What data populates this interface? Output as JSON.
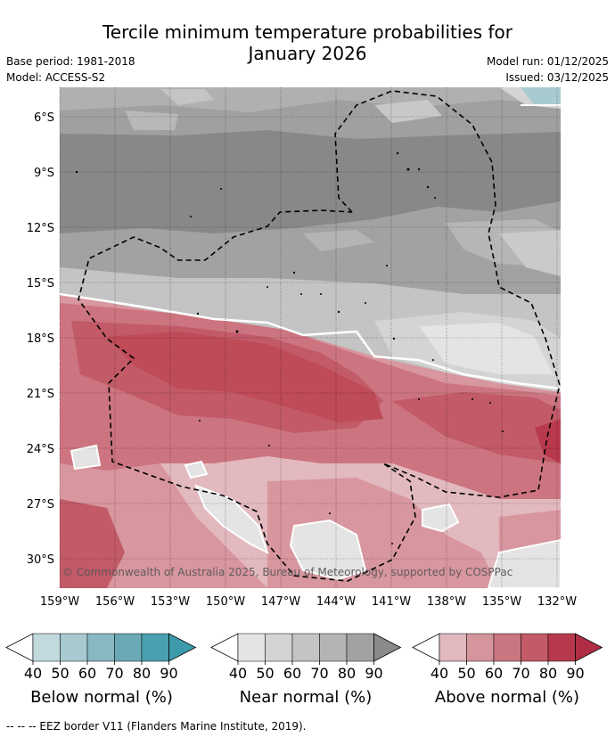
{
  "title": {
    "line1": "Tercile minimum temperature probabilities for",
    "line2": "January 2026"
  },
  "meta": {
    "base_period": "Base period: 1981-2018",
    "model": "Model: ACCESS-S2",
    "model_run": "Model run: 01/12/2025",
    "issued": "Issued: 03/12/2025"
  },
  "map": {
    "lat_labels": [
      "6°S",
      "9°S",
      "12°S",
      "15°S",
      "18°S",
      "21°S",
      "24°S",
      "27°S",
      "30°S"
    ],
    "lon_labels": [
      "159°W",
      "156°W",
      "153°W",
      "150°W",
      "147°W",
      "144°W",
      "141°W",
      "138°W",
      "135°W",
      "132°W"
    ],
    "copyright": "© Commonwealth of Australia 2025, Bureau of Meteorology, supported by COSPPac"
  },
  "colorbars": [
    {
      "id": "below",
      "label": "Below normal (%)",
      "ticks": [
        "40",
        "50",
        "60",
        "70",
        "80",
        "90"
      ],
      "colors": [
        "#c2d9de",
        "#a7cad1",
        "#88b8c2",
        "#6aa9b5",
        "#49a0b0",
        "#3c9aab"
      ]
    },
    {
      "id": "near",
      "label": "Near normal (%)",
      "ticks": [
        "40",
        "50",
        "60",
        "70",
        "80",
        "90"
      ],
      "colors": [
        "#e4e4e4",
        "#d4d4d4",
        "#c4c4c4",
        "#b4b4b4",
        "#a2a2a2",
        "#8a8a8a"
      ]
    },
    {
      "id": "above",
      "label": "Above normal (%)",
      "ticks": [
        "40",
        "50",
        "60",
        "70",
        "80",
        "90"
      ],
      "colors": [
        "#e0b8bd",
        "#d4959c",
        "#ca7680",
        "#c25b67",
        "#b8394e",
        "#b02e45"
      ]
    }
  ],
  "legend": {
    "eez": "-- -- -- EEZ border V11 (Flanders Marine Institute, 2019)."
  },
  "palette": {
    "near_40": "#e4e4e4",
    "near_50": "#d4d4d4",
    "near_60": "#c4c4c4",
    "near_70": "#b0b0b0",
    "near_80": "#a0a0a0",
    "near_90": "#888888",
    "above_40": "#e2b9be",
    "above_50": "#d8969e",
    "above_60": "#cc7580",
    "above_70": "#c25a68",
    "above_80": "#bf4a58",
    "below_50": "#a8cbd2",
    "contour": "#ffffff",
    "eez": "#000000"
  }
}
